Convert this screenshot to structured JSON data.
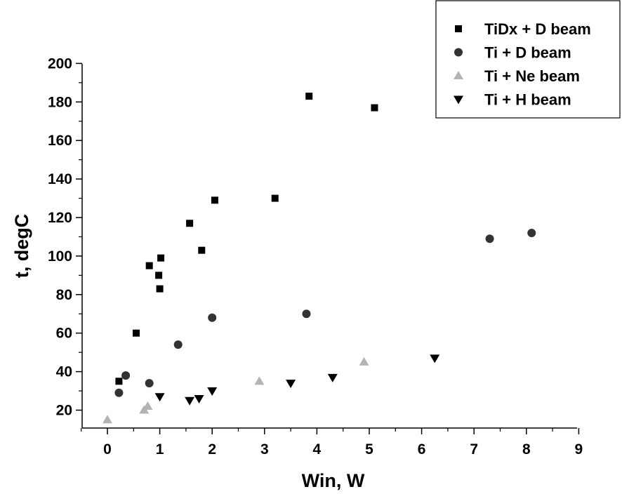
{
  "chart_data": {
    "type": "scatter",
    "xlabel": "Win, W",
    "ylabel": "t, degC",
    "xlim": [
      -0.5,
      9
    ],
    "ylim": [
      10,
      200
    ],
    "xticks": [
      0,
      1,
      2,
      3,
      4,
      5,
      6,
      7,
      8,
      9
    ],
    "yticks": [
      20,
      40,
      60,
      80,
      100,
      120,
      140,
      160,
      180,
      200
    ],
    "grid": false,
    "legend_position": "top-right",
    "series": [
      {
        "name": "TiDx + D beam",
        "marker": "square",
        "color": "#000000",
        "points": [
          [
            0.22,
            35
          ],
          [
            0.55,
            60
          ],
          [
            0.8,
            95
          ],
          [
            0.98,
            90
          ],
          [
            1.02,
            99
          ],
          [
            1.0,
            83
          ],
          [
            1.57,
            117
          ],
          [
            1.8,
            103
          ],
          [
            2.05,
            129
          ],
          [
            3.2,
            130
          ],
          [
            3.85,
            183
          ],
          [
            5.1,
            177
          ]
        ]
      },
      {
        "name": "Ti + D beam",
        "marker": "circle",
        "color": "#333333",
        "points": [
          [
            0.22,
            29
          ],
          [
            0.35,
            38
          ],
          [
            0.8,
            34
          ],
          [
            1.35,
            54
          ],
          [
            2.0,
            68
          ],
          [
            3.8,
            70
          ],
          [
            7.3,
            109
          ],
          [
            8.1,
            112
          ]
        ]
      },
      {
        "name": "Ti + Ne beam",
        "marker": "triangle-up",
        "color": "#b3b3b3",
        "points": [
          [
            0.0,
            15
          ],
          [
            0.7,
            20
          ],
          [
            0.77,
            22
          ],
          [
            2.9,
            35
          ],
          [
            4.9,
            45
          ]
        ]
      },
      {
        "name": "Ti + H beam",
        "marker": "triangle-down",
        "color": "#000000",
        "points": [
          [
            1.0,
            27
          ],
          [
            1.57,
            25
          ],
          [
            1.75,
            26
          ],
          [
            2.0,
            30
          ],
          [
            3.5,
            34
          ],
          [
            4.3,
            37
          ],
          [
            6.25,
            47
          ]
        ]
      }
    ]
  }
}
